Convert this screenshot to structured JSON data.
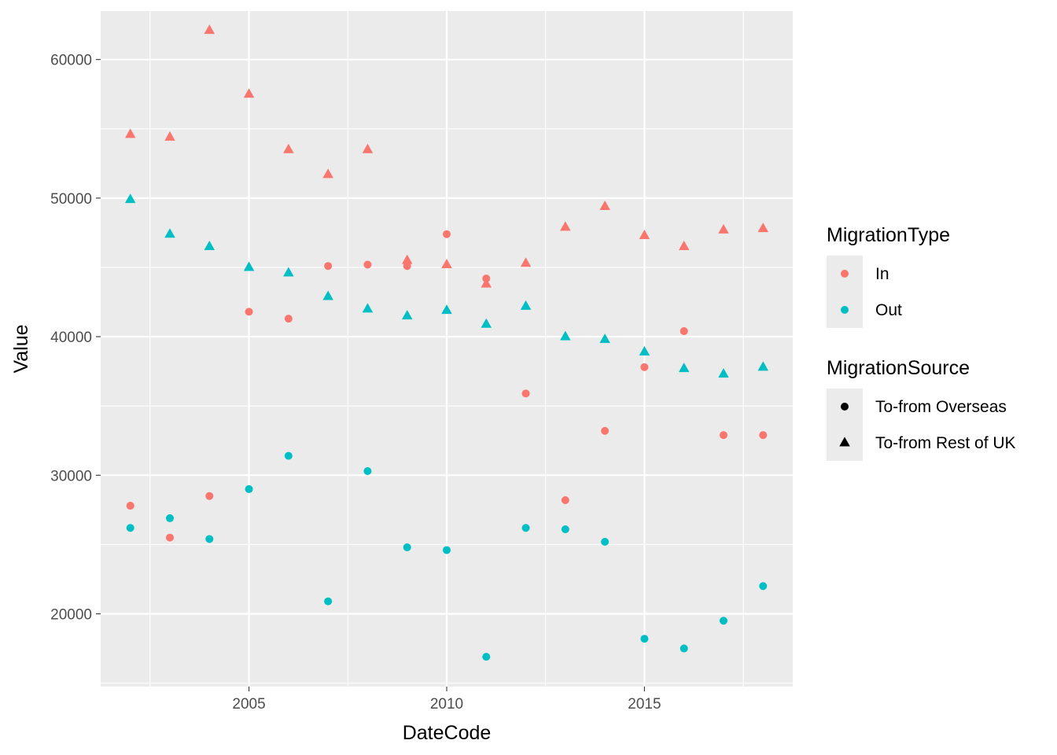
{
  "chart_data": {
    "type": "scatter",
    "xlabel": "DateCode",
    "ylabel": "Value",
    "xlim": [
      2001.25,
      2018.75
    ],
    "ylim": [
      14750,
      63500
    ],
    "x_ticks": [
      2005,
      2010,
      2015
    ],
    "x_tick_labels": [
      "2005",
      "2010",
      "2015"
    ],
    "y_ticks": [
      20000,
      30000,
      40000,
      50000,
      60000
    ],
    "y_tick_labels": [
      "20000",
      "30000",
      "40000",
      "50000",
      "60000"
    ],
    "grid": true,
    "legend_position": "right",
    "colors": {
      "In": "#F8766D",
      "Out": "#00BFC4"
    },
    "legends": [
      {
        "title": "MigrationType",
        "entries": [
          {
            "label": "In",
            "color": "#F8766D",
            "shape": "circle"
          },
          {
            "label": "Out",
            "color": "#00BFC4",
            "shape": "circle"
          }
        ]
      },
      {
        "title": "MigrationSource",
        "entries": [
          {
            "label": "To-from Overseas",
            "color": "#000000",
            "shape": "circle"
          },
          {
            "label": "To-from Rest of UK",
            "color": "#000000",
            "shape": "triangle"
          }
        ]
      }
    ],
    "x": [
      2002,
      2003,
      2004,
      2005,
      2006,
      2007,
      2008,
      2009,
      2010,
      2011,
      2012,
      2013,
      2014,
      2015,
      2016,
      2017,
      2018
    ],
    "series": [
      {
        "type": "In",
        "source": "To-from Overseas",
        "color": "#F8766D",
        "shape": "circle",
        "values": [
          27800,
          25500,
          28500,
          41800,
          41300,
          45100,
          45200,
          45100,
          47400,
          44200,
          35900,
          28200,
          33200,
          37800,
          40400,
          32900,
          32900
        ]
      },
      {
        "type": "In",
        "source": "To-from Rest of UK",
        "color": "#F8766D",
        "shape": "triangle",
        "values": [
          54600,
          54400,
          62100,
          57500,
          53500,
          51700,
          53500,
          45500,
          45200,
          43800,
          45300,
          47900,
          49400,
          47300,
          46500,
          47700,
          47800
        ]
      },
      {
        "type": "Out",
        "source": "To-from Overseas",
        "color": "#00BFC4",
        "shape": "circle",
        "values": [
          26200,
          26900,
          25400,
          29000,
          31400,
          20900,
          30300,
          24800,
          24600,
          16900,
          26200,
          26100,
          25200,
          18200,
          17500,
          19500,
          22000
        ]
      },
      {
        "type": "Out",
        "source": "To-from Rest of UK",
        "color": "#00BFC4",
        "shape": "triangle",
        "values": [
          49900,
          47400,
          46500,
          45000,
          44600,
          42900,
          42000,
          41500,
          41900,
          40900,
          42200,
          40000,
          39800,
          38900,
          37700,
          37300,
          37800
        ]
      }
    ]
  }
}
